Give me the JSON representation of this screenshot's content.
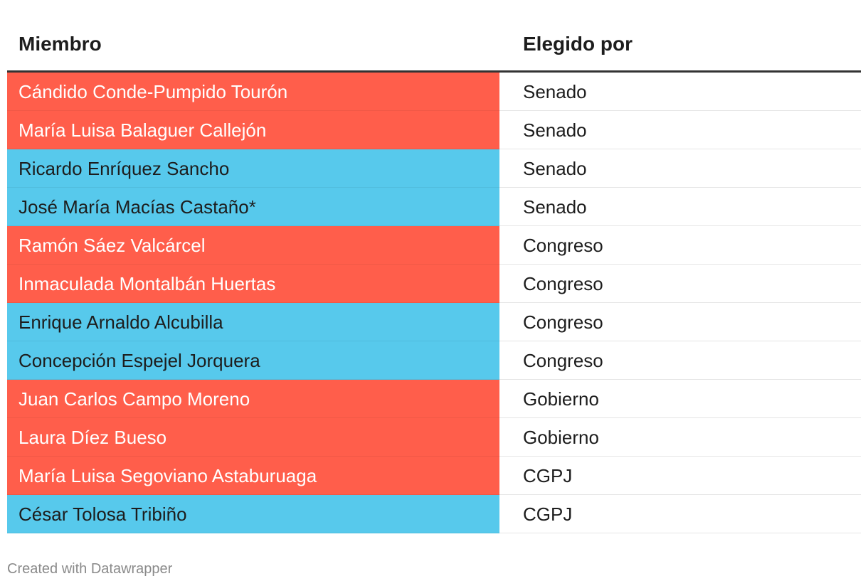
{
  "chart_data": {
    "type": "table",
    "columns": [
      "Miembro",
      "Elegido por"
    ],
    "colors": {
      "red": "#ff5e4b",
      "blue": "#57c9ec",
      "red_text": "#ffffff",
      "blue_text": "#1d1d1d"
    },
    "rows": [
      {
        "member": "Cándido Conde-Pumpido Tourón",
        "elected_by": "Senado",
        "color": "red"
      },
      {
        "member": "María Luisa Balaguer Callejón",
        "elected_by": "Senado",
        "color": "red"
      },
      {
        "member": "Ricardo Enríquez Sancho",
        "elected_by": "Senado",
        "color": "blue"
      },
      {
        "member": "José María Macías Castaño*",
        "elected_by": "Senado",
        "color": "blue"
      },
      {
        "member": "Ramón Sáez Valcárcel",
        "elected_by": "Congreso",
        "color": "red"
      },
      {
        "member": "Inmaculada Montalbán Huertas",
        "elected_by": "Congreso",
        "color": "red"
      },
      {
        "member": "Enrique Arnaldo Alcubilla",
        "elected_by": "Congreso",
        "color": "blue"
      },
      {
        "member": "Concepción Espejel Jorquera",
        "elected_by": "Congreso",
        "color": "blue"
      },
      {
        "member": "Juan Carlos Campo Moreno",
        "elected_by": "Gobierno",
        "color": "red"
      },
      {
        "member": "Laura Díez Bueso",
        "elected_by": "Gobierno",
        "color": "red"
      },
      {
        "member": "María Luisa Segoviano Astaburuaga",
        "elected_by": "CGPJ",
        "color": "red"
      },
      {
        "member": "César Tolosa Tribiño",
        "elected_by": "CGPJ",
        "color": "blue"
      }
    ]
  },
  "footer": {
    "credit": "Created with Datawrapper"
  }
}
